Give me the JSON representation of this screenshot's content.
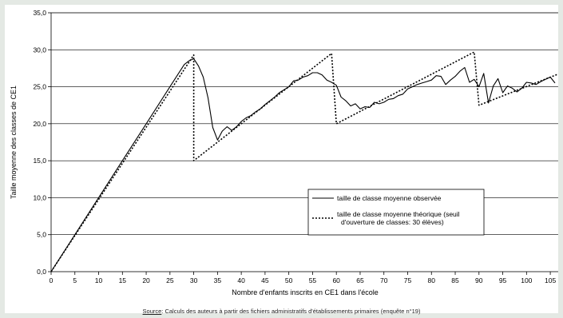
{
  "chart_data": {
    "type": "line",
    "xlabel": "Nombre d'enfants inscrits en CE1 dans l'école",
    "ylabel": "Taille moyenne des classes de CE1",
    "xlim": [
      0,
      107
    ],
    "ylim": [
      0,
      35
    ],
    "xticks": [
      0,
      5,
      10,
      15,
      20,
      25,
      30,
      35,
      40,
      45,
      50,
      55,
      60,
      65,
      70,
      75,
      80,
      85,
      90,
      95,
      100,
      105
    ],
    "yticks": [
      "0,0",
      "5,0",
      "10,0",
      "15,0",
      "20,0",
      "25,0",
      "30,0",
      "35,0"
    ],
    "grid": "horizontal",
    "legend_position": "bottom-right",
    "legend": [
      "taille de classe moyenne observée",
      "taille de classe moyenne théorique (seuil d'ouverture de classes: 30 élèves)"
    ],
    "series": [
      {
        "name": "taille de classe moyenne observée",
        "style": "solid",
        "x": [
          0,
          5,
          10,
          15,
          20,
          25,
          28,
          29,
          30,
          31,
          32,
          33,
          34,
          35,
          36,
          37,
          38,
          39,
          40,
          41,
          42,
          43,
          44,
          45,
          46,
          47,
          48,
          49,
          50,
          51,
          52,
          53,
          54,
          55,
          56,
          57,
          58,
          59,
          60,
          61,
          62,
          63,
          64,
          65,
          66,
          67,
          68,
          69,
          70,
          71,
          72,
          73,
          74,
          75,
          76,
          77,
          78,
          79,
          80,
          81,
          82,
          83,
          84,
          85,
          86,
          87,
          88,
          89,
          90,
          91,
          92,
          93,
          94,
          95,
          96,
          97,
          98,
          99,
          100,
          101,
          102,
          103,
          104,
          105,
          106
        ],
        "y": [
          0,
          5,
          10,
          15,
          20,
          25,
          28,
          28.5,
          28.8,
          27.8,
          26.3,
          23.5,
          19.5,
          17.8,
          19.0,
          19.6,
          19.1,
          19.6,
          20.3,
          20.8,
          21.1,
          21.6,
          22.0,
          22.6,
          23.1,
          23.6,
          24.2,
          24.6,
          25.0,
          25.8,
          25.9,
          26.3,
          26.5,
          26.9,
          26.9,
          26.6,
          25.9,
          25.6,
          25.2,
          23.6,
          23.1,
          22.4,
          22.7,
          22.0,
          22.3,
          22.2,
          22.9,
          22.7,
          22.9,
          23.3,
          23.4,
          23.8,
          24.0,
          24.7,
          25.0,
          25.3,
          25.5,
          25.7,
          25.9,
          26.5,
          26.4,
          25.3,
          25.9,
          26.4,
          27.1,
          27.6,
          25.6,
          26.0,
          25.0,
          26.8,
          22.8,
          25.1,
          26.1,
          24.2,
          25.1,
          24.8,
          24.3,
          24.8,
          25.6,
          25.5,
          25.3,
          25.7,
          26.0,
          26.3,
          25.5
        ]
      },
      {
        "name": "taille de classe moyenne théorique (seuil d'ouverture de classes: 30 élèves)",
        "style": "dotted",
        "x": [
          0,
          30,
          30,
          59,
          60,
          89,
          90,
          107
        ],
        "y": [
          0,
          29.3,
          15.0,
          29.5,
          20.0,
          29.7,
          22.5,
          26.8
        ]
      }
    ]
  },
  "source": {
    "label": "Source",
    "text": ": Calculs des auteurs à partir des fichiers administratifs d'établissements primaires (enquête n°19)"
  },
  "colors": {
    "page_background": "#e4e9e4",
    "plot_background": "#ffffff",
    "lines": "#000000"
  }
}
